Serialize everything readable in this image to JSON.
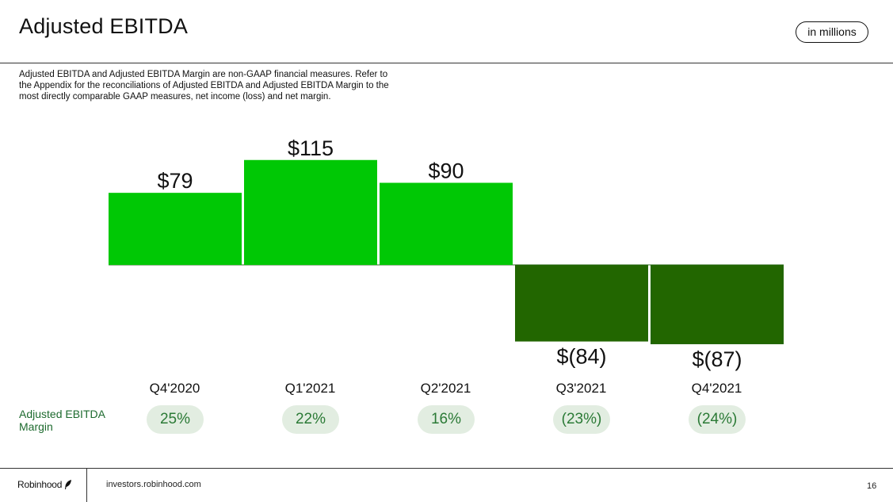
{
  "slide": {
    "title": "Adjusted EBITDA",
    "units": "in millions",
    "note": "Adjusted EBITDA and Adjusted EBITDA Margin are non-GAAP financial measures. Refer to the Appendix for the reconciliations of Adjusted EBITDA and Adjusted EBITDA Margin to the most directly comparable GAAP measures, net income (loss) and net margin.",
    "margin_label": "Adjusted EBITDA Margin"
  },
  "chart_data": {
    "type": "bar",
    "categories": [
      "Q4'2020",
      "Q1'2021",
      "Q2'2021",
      "Q3'2021",
      "Q4'2021"
    ],
    "values": [
      79,
      115,
      90,
      -84,
      -87
    ],
    "value_labels": [
      "$79",
      "$115",
      "$90",
      "$(84)",
      "$(87)"
    ],
    "margins": [
      "25%",
      "22%",
      "16%",
      "(23%)",
      "(24%)"
    ],
    "colors": {
      "positive": "#00c805",
      "negative": "#226600",
      "margin_pill_bg": "#e2ede1",
      "margin_text": "#2b7a36"
    }
  },
  "footer": {
    "brand": "Robinhood",
    "website": "investors.robinhood.com",
    "page_number": "16"
  }
}
